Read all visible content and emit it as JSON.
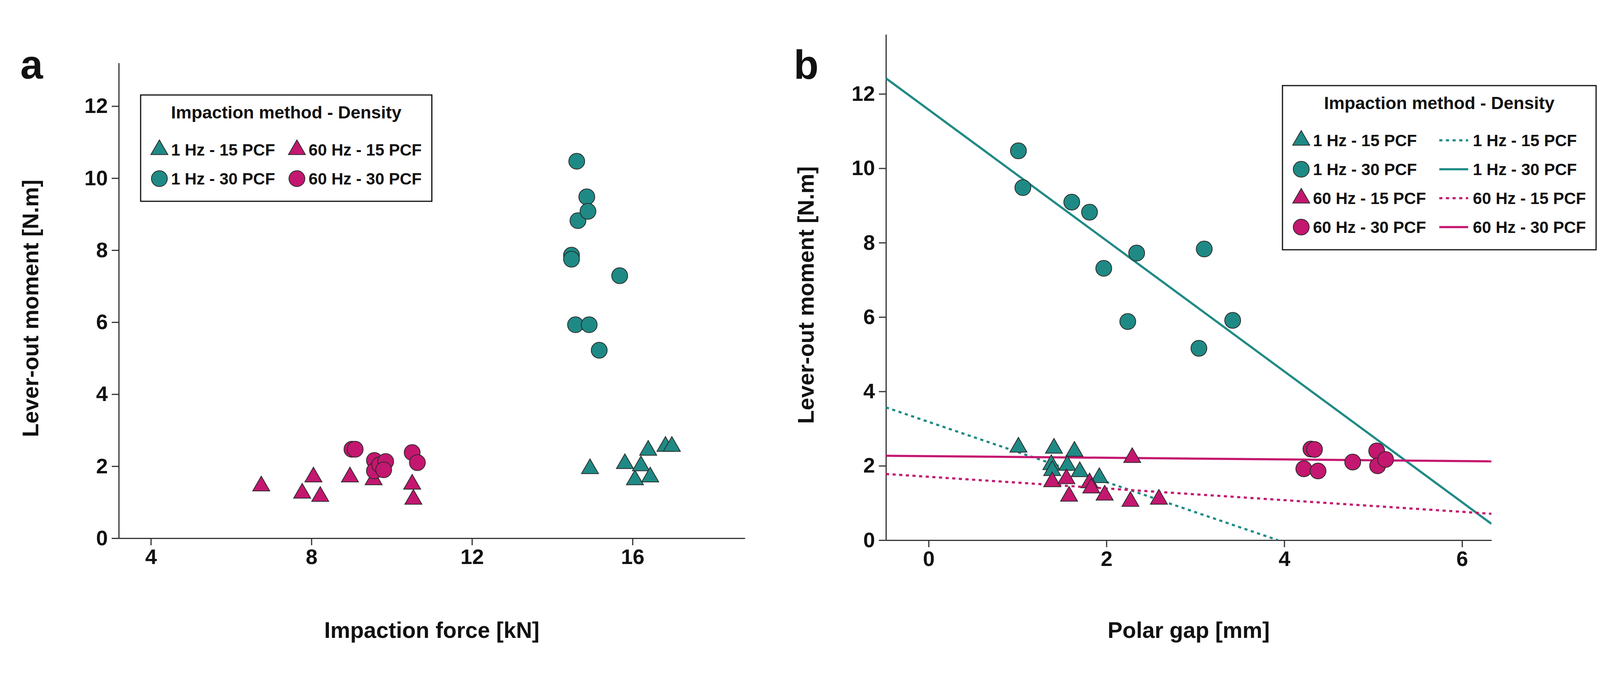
{
  "chart_data": [
    {
      "type": "scatter",
      "title": "a",
      "x_label": "Impaction force [kN]",
      "y_label": "Lever-out moment [N.m]",
      "legend_title": "Impaction method - Density",
      "legend": "upper left",
      "xlim": [
        3.2,
        18.8
      ],
      "xticks": [
        4,
        8,
        12,
        16
      ],
      "ylim": [
        0,
        13.2
      ],
      "yticks": [
        0,
        2,
        4,
        6,
        8,
        10,
        12
      ],
      "series": [
        {
          "name": "1 Hz - 15 PCF",
          "color": "#1f8a85",
          "marker": "triangle",
          "x": [
            14.94,
            15.81,
            16.06,
            16.21,
            16.39,
            16.44,
            16.82,
            16.98
          ],
          "values": [
            1.93,
            2.07,
            1.62,
            2.01,
            2.44,
            1.7,
            2.55,
            2.55
          ]
        },
        {
          "name": "1 Hz - 30 PCF",
          "color": "#1f8a85",
          "marker": "circle",
          "x": [
            14.61,
            14.86,
            14.64,
            14.89,
            14.48,
            14.48,
            15.68,
            14.58,
            14.92,
            15.17
          ],
          "values": [
            10.47,
            9.48,
            8.82,
            9.08,
            7.86,
            7.75,
            7.29,
            5.93,
            5.93,
            5.22
          ]
        },
        {
          "name": "60 Hz - 15 PCF",
          "color": "#c4176f",
          "marker": "triangle",
          "x": [
            6.75,
            7.77,
            8.05,
            8.22,
            8.96,
            9.55,
            10.51,
            10.54
          ],
          "values": [
            1.45,
            1.25,
            1.7,
            1.16,
            1.7,
            1.62,
            1.5,
            1.08
          ]
        },
        {
          "name": "60 Hz - 30 PCF",
          "color": "#c4176f",
          "marker": "circle",
          "x": [
            9.01,
            9.09,
            9.57,
            9.57,
            9.7,
            9.85,
            9.8,
            10.51,
            10.64
          ],
          "values": [
            2.47,
            2.47,
            2.16,
            1.87,
            2.04,
            2.13,
            1.9,
            2.38,
            2.1
          ]
        }
      ]
    },
    {
      "type": "scatter",
      "title": "b",
      "x_label": "Polar gap [mm]",
      "y_label": "Lever-out moment [N.m]",
      "legend_title": "Impaction method - Density",
      "legend": "upper right",
      "xlim": [
        -0.48,
        6.33
      ],
      "xticks": [
        0,
        2,
        4,
        6
      ],
      "ylim": [
        0,
        13.6
      ],
      "yticks": [
        0,
        2,
        4,
        6,
        8,
        10,
        12
      ],
      "series": [
        {
          "name": "1 Hz - 15 PCF",
          "type": "scatter",
          "color": "#1f8a85",
          "marker": "triangle",
          "x": [
            1.01,
            1.41,
            1.64,
            1.38,
            1.39,
            1.56,
            1.7,
            1.92
          ],
          "values": [
            2.5,
            2.47,
            2.39,
            2.03,
            1.87,
            2.01,
            1.84,
            1.68
          ]
        },
        {
          "name": "1 Hz - 30 PCF",
          "type": "scatter",
          "color": "#1f8a85",
          "marker": "circle",
          "x": [
            1.01,
            1.06,
            1.61,
            1.81,
            1.97,
            2.34,
            2.24,
            3.1,
            3.04,
            3.42
          ],
          "values": [
            10.47,
            9.48,
            9.09,
            8.82,
            7.31,
            7.72,
            5.88,
            7.83,
            5.16,
            5.91
          ]
        },
        {
          "name": "60 Hz - 15 PCF",
          "type": "scatter",
          "color": "#c4176f",
          "marker": "triangle",
          "x": [
            1.39,
            1.55,
            1.58,
            1.81,
            1.83,
            1.98,
            2.27,
            2.29,
            2.59
          ],
          "values": [
            1.57,
            1.65,
            1.18,
            1.54,
            1.4,
            1.21,
            1.04,
            2.22,
            1.1
          ]
        },
        {
          "name": "60 Hz - 30 PCF",
          "type": "scatter",
          "color": "#c4176f",
          "marker": "circle",
          "x": [
            4.22,
            4.3,
            4.34,
            4.38,
            4.77,
            5.04,
            5.05,
            5.14
          ],
          "values": [
            1.92,
            2.45,
            2.44,
            1.86,
            2.1,
            2.4,
            2.0,
            2.17
          ]
        },
        {
          "name": "1 Hz - 15 PCF",
          "type": "line",
          "color": "#1f8a85",
          "line_style": "dotted",
          "x": [
            -0.48,
            3.93
          ],
          "values": [
            3.57,
            0
          ]
        },
        {
          "name": "1 Hz - 30 PCF",
          "type": "line",
          "color": "#1f8a85",
          "line_style": "solid",
          "x": [
            -0.48,
            6.33
          ],
          "values": [
            12.42,
            0.44
          ]
        },
        {
          "name": "60 Hz - 15 PCF",
          "type": "line",
          "color": "#c4176f",
          "line_style": "dotted",
          "x": [
            -0.48,
            6.33
          ],
          "values": [
            1.78,
            0.71
          ]
        },
        {
          "name": "60 Hz - 30 PCF",
          "type": "line",
          "color": "#c4176f",
          "line_style": "solid",
          "x": [
            -0.48,
            6.33
          ],
          "values": [
            2.27,
            2.12
          ]
        }
      ]
    }
  ]
}
